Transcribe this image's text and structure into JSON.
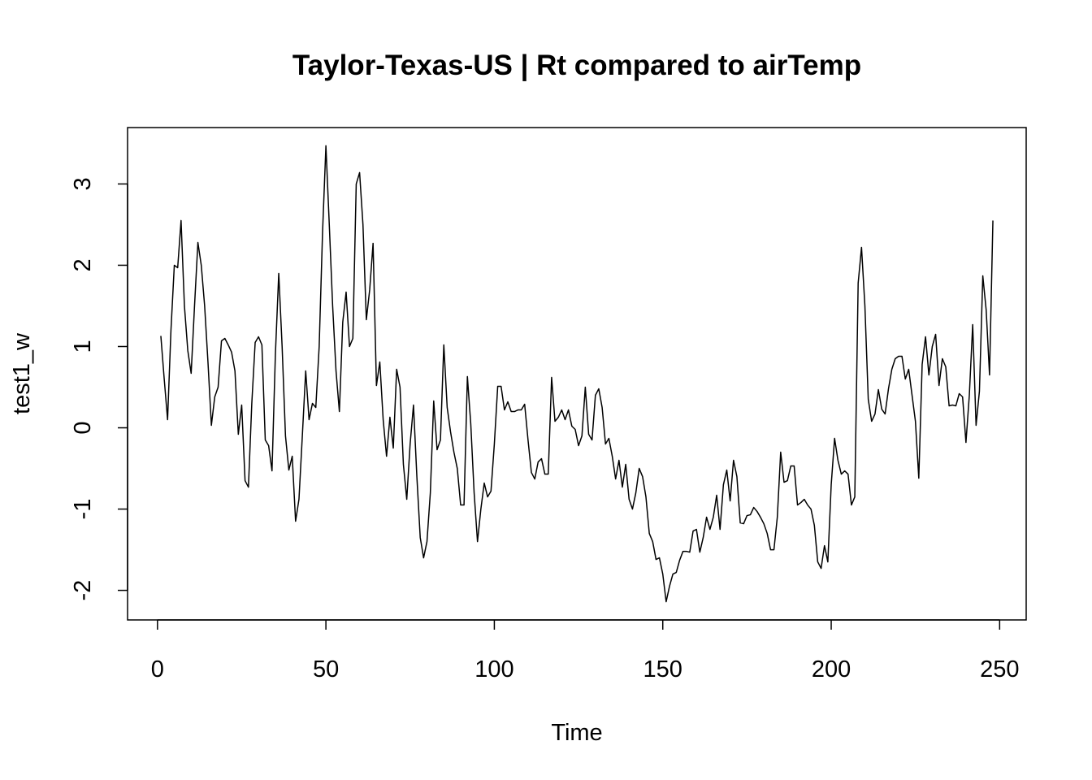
{
  "chart_data": {
    "type": "line",
    "title": "Taylor-Texas-US | Rt compared to airTemp",
    "xlabel": "Time",
    "ylabel": "test1_w",
    "x": [
      1,
      2,
      3,
      4,
      5,
      6,
      7,
      8,
      9,
      10,
      11,
      12,
      13,
      14,
      15,
      16,
      17,
      18,
      19,
      20,
      21,
      22,
      23,
      24,
      25,
      26,
      27,
      28,
      29,
      30,
      31,
      32,
      33,
      34,
      35,
      36,
      37,
      38,
      39,
      40,
      41,
      42,
      43,
      44,
      45,
      46,
      47,
      48,
      49,
      50,
      51,
      52,
      53,
      54,
      55,
      56,
      57,
      58,
      59,
      60,
      61,
      62,
      63,
      64,
      65,
      66,
      67,
      68,
      69,
      70,
      71,
      72,
      73,
      74,
      75,
      76,
      77,
      78,
      79,
      80,
      81,
      82,
      83,
      84,
      85,
      86,
      87,
      88,
      89,
      90,
      91,
      92,
      93,
      94,
      95,
      96,
      97,
      98,
      99,
      100,
      101,
      102,
      103,
      104,
      105,
      106,
      107,
      108,
      109,
      110,
      111,
      112,
      113,
      114,
      115,
      116,
      117,
      118,
      119,
      120,
      121,
      122,
      123,
      124,
      125,
      126,
      127,
      128,
      129,
      130,
      131,
      132,
      133,
      134,
      135,
      136,
      137,
      138,
      139,
      140,
      141,
      142,
      143,
      144,
      145,
      146,
      147,
      148,
      149,
      150,
      151,
      152,
      153,
      154,
      155,
      156,
      157,
      158,
      159,
      160,
      161,
      162,
      163,
      164,
      165,
      166,
      167,
      168,
      169,
      170,
      171,
      172,
      173,
      174,
      175,
      176,
      177,
      178,
      179,
      180,
      181,
      182,
      183,
      184,
      185,
      186,
      187,
      188,
      189,
      190,
      191,
      192,
      193,
      194,
      195,
      196,
      197,
      198,
      199,
      200,
      201,
      202,
      203,
      204,
      205,
      206,
      207,
      208,
      209,
      210,
      211,
      212,
      213,
      214,
      215,
      216,
      217,
      218,
      219,
      220,
      221,
      222,
      223,
      224,
      225,
      226,
      227,
      228,
      229,
      230,
      231,
      232,
      233,
      234,
      235,
      236,
      237,
      238,
      239,
      240,
      241,
      242,
      243,
      244,
      245,
      246,
      247,
      248
    ],
    "series": [
      {
        "name": "test1_w",
        "color": "#000000",
        "values": [
          1.13,
          0.6,
          0.1,
          1.2,
          2.0,
          1.97,
          2.55,
          1.5,
          0.95,
          0.67,
          1.5,
          2.28,
          2.0,
          1.5,
          0.8,
          0.03,
          0.38,
          0.5,
          1.07,
          1.1,
          1.02,
          0.93,
          0.7,
          -0.08,
          0.28,
          -0.65,
          -0.73,
          0.3,
          1.05,
          1.12,
          1.02,
          -0.15,
          -0.22,
          -0.53,
          0.9,
          1.9,
          1.0,
          -0.1,
          -0.52,
          -0.35,
          -1.15,
          -0.88,
          -0.1,
          0.7,
          0.1,
          0.3,
          0.25,
          1.0,
          2.4,
          3.47,
          2.5,
          1.5,
          0.7,
          0.2,
          1.3,
          1.67,
          1.0,
          1.1,
          3.0,
          3.14,
          2.5,
          1.33,
          1.7,
          2.27,
          0.52,
          0.81,
          0.1,
          -0.35,
          0.13,
          -0.25,
          0.72,
          0.5,
          -0.45,
          -0.88,
          -0.2,
          0.28,
          -0.6,
          -1.35,
          -1.6,
          -1.4,
          -0.8,
          0.33,
          -0.27,
          -0.15,
          1.02,
          0.25,
          -0.05,
          -0.3,
          -0.5,
          -0.95,
          -0.95,
          0.63,
          0.05,
          -0.8,
          -1.4,
          -1.0,
          -0.68,
          -0.85,
          -0.78,
          -0.2,
          0.51,
          0.51,
          0.22,
          0.32,
          0.2,
          0.2,
          0.22,
          0.22,
          0.29,
          -0.15,
          -0.55,
          -0.63,
          -0.42,
          -0.38,
          -0.57,
          -0.57,
          0.62,
          0.08,
          0.13,
          0.22,
          0.1,
          0.22,
          0.02,
          -0.02,
          -0.22,
          -0.1,
          0.5,
          -0.08,
          -0.15,
          0.4,
          0.48,
          0.25,
          -0.2,
          -0.13,
          -0.35,
          -0.63,
          -0.4,
          -0.73,
          -0.45,
          -0.88,
          -1.0,
          -0.8,
          -0.5,
          -0.6,
          -0.85,
          -1.3,
          -1.4,
          -1.62,
          -1.6,
          -1.8,
          -2.14,
          -1.95,
          -1.8,
          -1.78,
          -1.63,
          -1.52,
          -1.52,
          -1.53,
          -1.27,
          -1.25,
          -1.53,
          -1.35,
          -1.1,
          -1.25,
          -1.1,
          -0.83,
          -1.25,
          -0.7,
          -0.52,
          -0.9,
          -0.4,
          -0.6,
          -1.17,
          -1.18,
          -1.08,
          -1.07,
          -0.98,
          -1.03,
          -1.1,
          -1.18,
          -1.3,
          -1.5,
          -1.5,
          -1.1,
          -0.3,
          -0.67,
          -0.65,
          -0.47,
          -0.47,
          -0.95,
          -0.92,
          -0.88,
          -0.95,
          -1.0,
          -1.2,
          -1.65,
          -1.73,
          -1.45,
          -1.65,
          -0.7,
          -0.13,
          -0.4,
          -0.57,
          -0.53,
          -0.57,
          -0.95,
          -0.85,
          1.78,
          2.22,
          1.5,
          0.35,
          0.08,
          0.17,
          0.47,
          0.23,
          0.17,
          0.48,
          0.72,
          0.85,
          0.88,
          0.88,
          0.6,
          0.72,
          0.4,
          0.08,
          -0.62,
          0.78,
          1.12,
          0.65,
          1.0,
          1.15,
          0.52,
          0.85,
          0.75,
          0.27,
          0.28,
          0.27,
          0.42,
          0.38,
          -0.18,
          0.4,
          1.27,
          0.03,
          0.45,
          1.87,
          1.45,
          0.65,
          2.55
        ]
      }
    ],
    "xlim": [
      -8.88,
      257.88
    ],
    "ylim": [
      -2.364,
      3.694
    ],
    "xticks": [
      0,
      50,
      100,
      150,
      200,
      250
    ],
    "yticks": [
      -2,
      -1,
      0,
      1,
      2,
      3
    ]
  }
}
